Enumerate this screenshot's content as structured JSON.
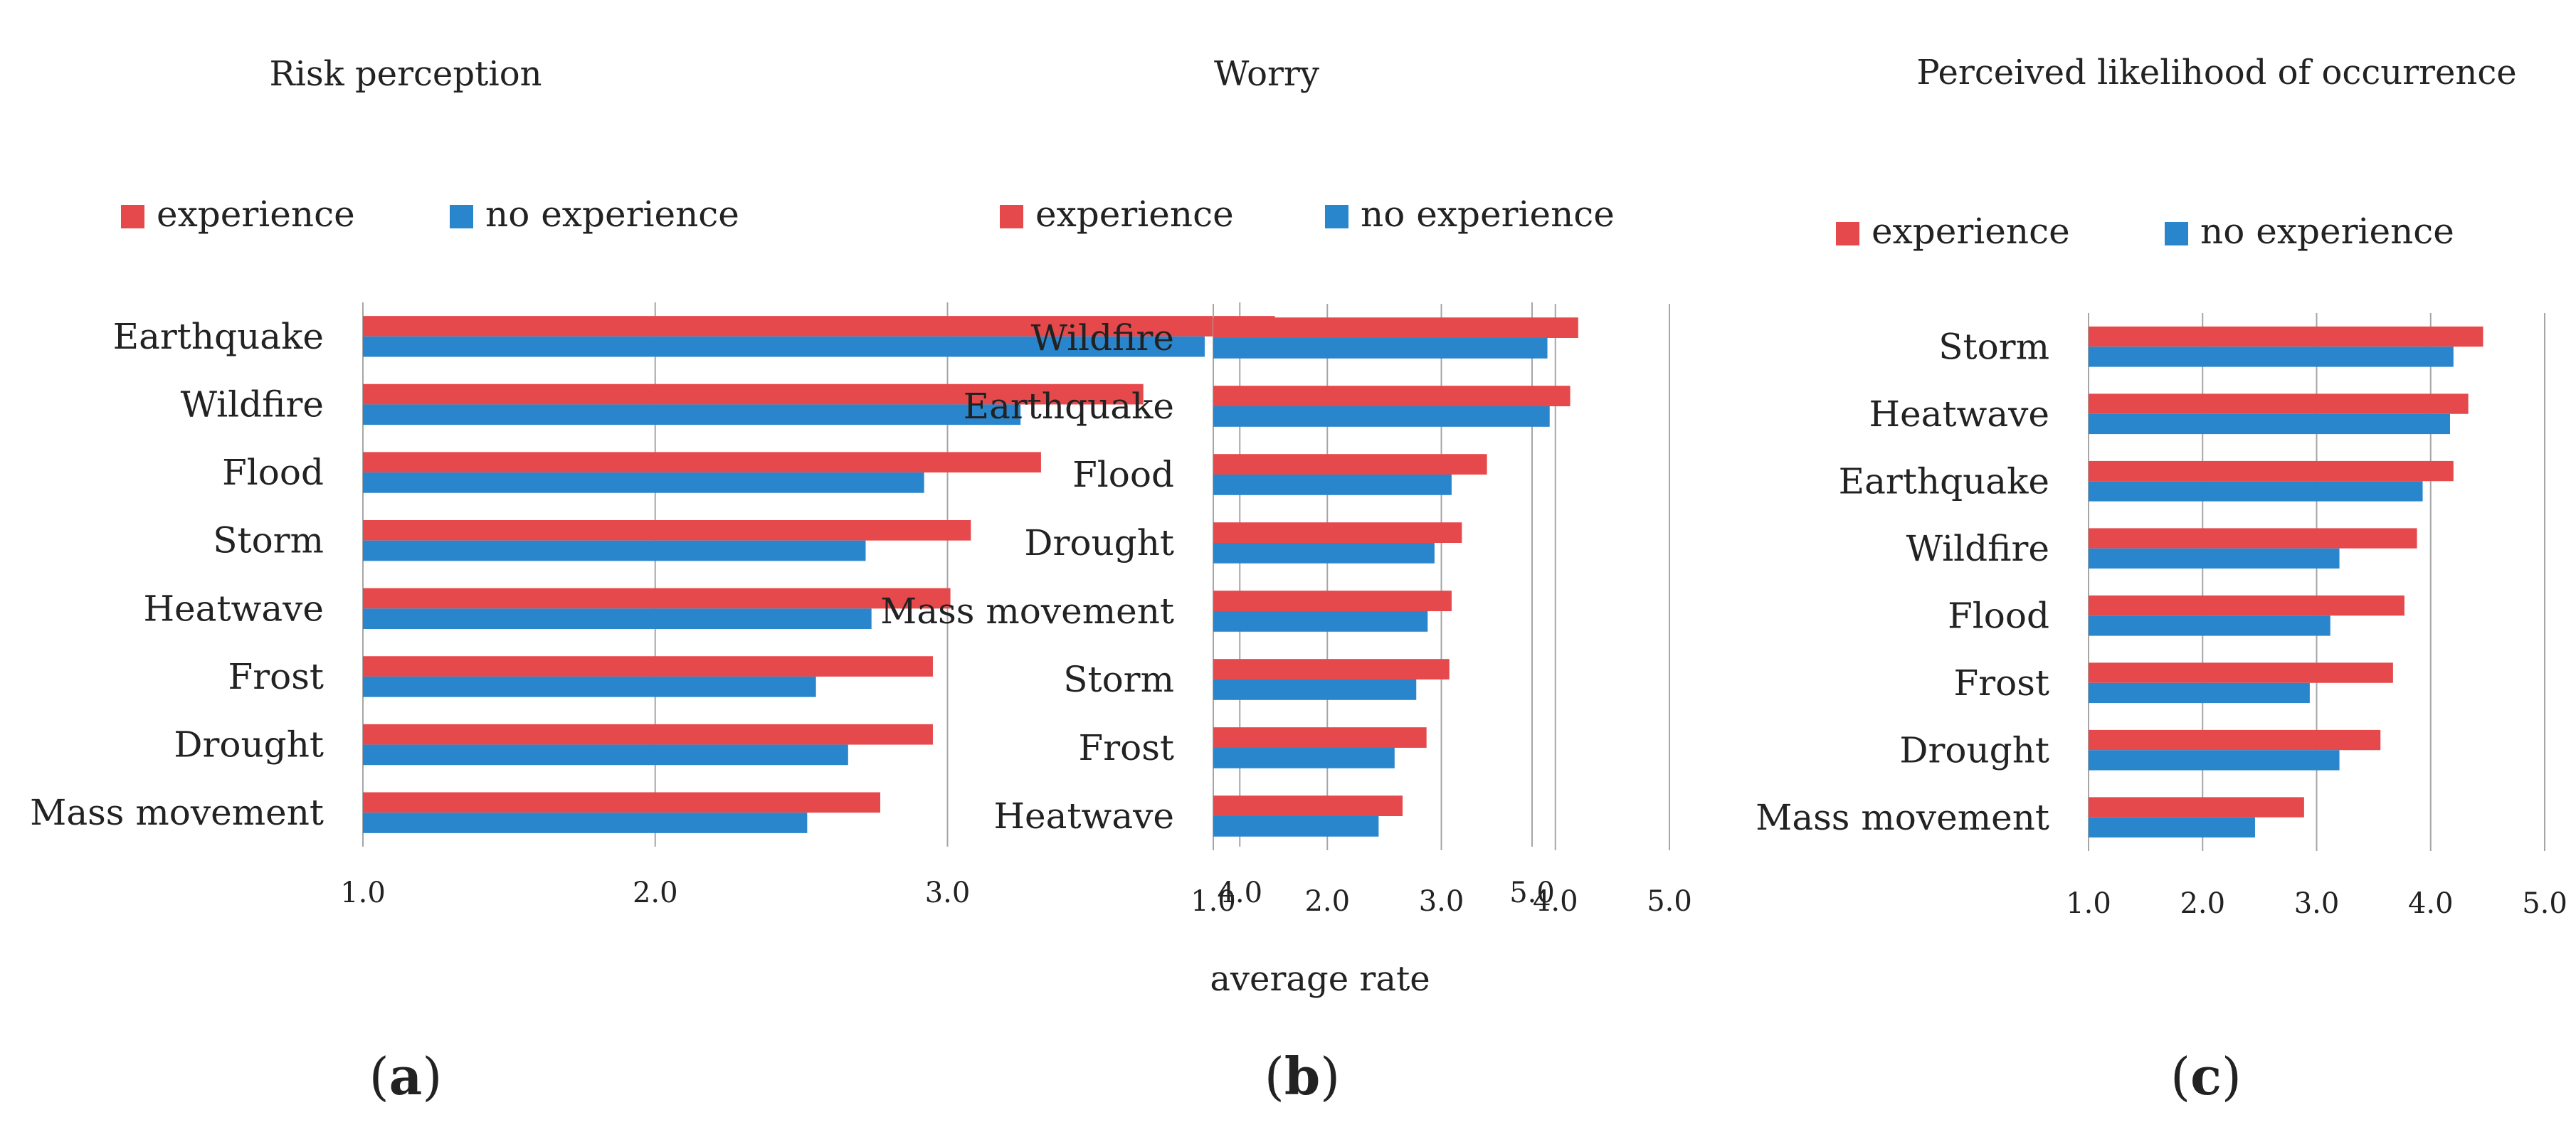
{
  "figure": {
    "xaxis_label": "average rate",
    "colors": {
      "experience": "#E5494B",
      "no_experience": "#2A86CC",
      "grid": "#A6A6A6"
    }
  },
  "chart_data": [
    {
      "type": "bar",
      "orientation": "horizontal",
      "title": "Risk perception",
      "panel_label": "a",
      "legend": [
        "experience",
        "no experience"
      ],
      "categories": [
        "Earthquake",
        "Wildfire",
        "Flood",
        "Storm",
        "Heatwave",
        "Frost",
        "Drought",
        "Mass movement"
      ],
      "series": [
        {
          "name": "experience",
          "values": [
            4.12,
            3.67,
            3.32,
            3.08,
            3.01,
            2.95,
            2.95,
            2.77
          ]
        },
        {
          "name": "no experience",
          "values": [
            3.88,
            3.25,
            2.92,
            2.72,
            2.74,
            2.55,
            2.66,
            2.52
          ]
        }
      ],
      "xlim": [
        1.0,
        5.0
      ],
      "xticks": [
        "1.0",
        "2.0",
        "3.0",
        "4.0",
        "5.0"
      ],
      "grid": true
    },
    {
      "type": "bar",
      "orientation": "horizontal",
      "title": "Worry",
      "panel_label": "b",
      "legend": [
        "experience",
        "no experience"
      ],
      "categories": [
        "Wildfire",
        "Earthquake",
        "Flood",
        "Drought",
        "Mass movement",
        "Storm",
        "Frost",
        "Heatwave"
      ],
      "series": [
        {
          "name": "experience",
          "values": [
            4.2,
            4.13,
            3.4,
            3.18,
            3.09,
            3.07,
            2.87,
            2.66
          ]
        },
        {
          "name": "no experience",
          "values": [
            3.93,
            3.95,
            3.09,
            2.94,
            2.88,
            2.78,
            2.59,
            2.45
          ]
        }
      ],
      "xlim": [
        1.0,
        5.0
      ],
      "xticks": [
        "1.0",
        "2.0",
        "3.0",
        "4.0",
        "5.0"
      ],
      "grid": true
    },
    {
      "type": "bar",
      "orientation": "horizontal",
      "title": "Perceived likelihood of occurrence",
      "panel_label": "c",
      "legend": [
        "experience",
        "no experience"
      ],
      "categories": [
        "Storm",
        "Heatwave",
        "Earthquake",
        "Wildfire",
        "Flood",
        "Frost",
        "Drought",
        "Mass movement"
      ],
      "series": [
        {
          "name": "experience",
          "values": [
            4.46,
            4.33,
            4.2,
            3.88,
            3.77,
            3.67,
            3.56,
            2.89
          ]
        },
        {
          "name": "no experience",
          "values": [
            4.2,
            4.17,
            3.93,
            3.2,
            3.12,
            2.94,
            3.2,
            2.46
          ]
        }
      ],
      "xlim": [
        1.0,
        5.0
      ],
      "xticks": [
        "1.0",
        "2.0",
        "3.0",
        "4.0",
        "5.0"
      ],
      "grid": true
    }
  ]
}
